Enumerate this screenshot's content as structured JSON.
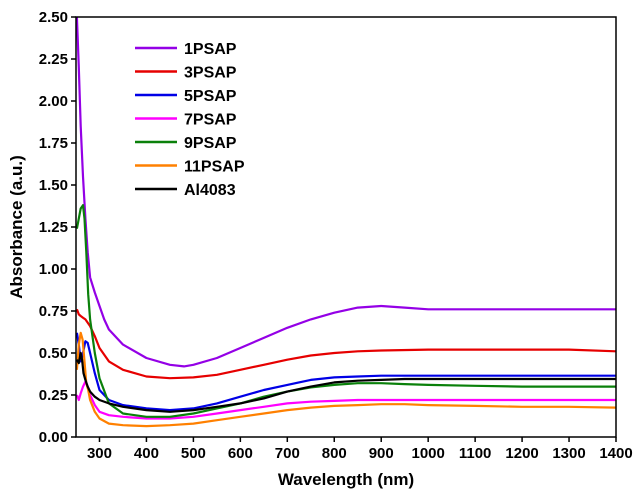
{
  "chart_data": {
    "type": "line",
    "xlabel": "Wavelength (nm)",
    "ylabel": "Absorbance (a.u.)",
    "xlim": [
      250,
      1400
    ],
    "ylim": [
      0,
      2.5
    ],
    "xticks": [
      300,
      400,
      500,
      600,
      700,
      800,
      900,
      1000,
      1100,
      1200,
      1300,
      1400
    ],
    "yticks": [
      "0.00",
      "0.25",
      "0.50",
      "0.75",
      "1.00",
      "1.25",
      "1.50",
      "1.75",
      "2.00",
      "2.25",
      "2.50"
    ],
    "legend_position": "top-left",
    "grid": false,
    "series": [
      {
        "name": "1PSAP",
        "color": "#9400e6",
        "x": [
          252,
          256,
          260,
          265,
          270,
          275,
          280,
          290,
          300,
          310,
          320,
          350,
          400,
          450,
          480,
          500,
          550,
          600,
          650,
          700,
          750,
          800,
          850,
          900,
          950,
          1000,
          1100,
          1200,
          1300,
          1400
        ],
        "y": [
          2.5,
          2.2,
          1.85,
          1.55,
          1.3,
          1.1,
          0.95,
          0.86,
          0.78,
          0.7,
          0.64,
          0.55,
          0.47,
          0.43,
          0.42,
          0.43,
          0.47,
          0.53,
          0.59,
          0.65,
          0.7,
          0.74,
          0.77,
          0.78,
          0.77,
          0.76,
          0.76,
          0.76,
          0.76,
          0.76
        ]
      },
      {
        "name": "3PSAP",
        "color": "#e60000",
        "x": [
          252,
          256,
          260,
          265,
          270,
          280,
          290,
          300,
          320,
          350,
          400,
          450,
          500,
          550,
          600,
          650,
          700,
          750,
          800,
          850,
          900,
          1000,
          1100,
          1200,
          1300,
          1400
        ],
        "y": [
          0.76,
          0.73,
          0.72,
          0.71,
          0.7,
          0.66,
          0.6,
          0.53,
          0.45,
          0.4,
          0.36,
          0.35,
          0.355,
          0.37,
          0.4,
          0.43,
          0.46,
          0.485,
          0.5,
          0.51,
          0.515,
          0.52,
          0.52,
          0.52,
          0.52,
          0.51
        ]
      },
      {
        "name": "5PSAP",
        "color": "#0000e6",
        "x": [
          252,
          256,
          260,
          265,
          270,
          275,
          280,
          290,
          300,
          320,
          350,
          400,
          450,
          500,
          550,
          600,
          650,
          700,
          750,
          800,
          850,
          900,
          1000,
          1100,
          1200,
          1300,
          1400
        ],
        "y": [
          0.62,
          0.55,
          0.45,
          0.5,
          0.57,
          0.56,
          0.5,
          0.38,
          0.28,
          0.22,
          0.19,
          0.17,
          0.16,
          0.17,
          0.2,
          0.24,
          0.28,
          0.31,
          0.34,
          0.355,
          0.36,
          0.365,
          0.365,
          0.365,
          0.365,
          0.365,
          0.365
        ]
      },
      {
        "name": "7PSAP",
        "color": "#ff00ff",
        "x": [
          252,
          256,
          260,
          265,
          270,
          275,
          280,
          290,
          300,
          320,
          350,
          400,
          450,
          500,
          550,
          600,
          650,
          700,
          750,
          800,
          850,
          900,
          1000,
          1100,
          1200,
          1300,
          1400
        ],
        "y": [
          0.25,
          0.22,
          0.26,
          0.3,
          0.33,
          0.3,
          0.25,
          0.19,
          0.15,
          0.13,
          0.12,
          0.11,
          0.11,
          0.12,
          0.14,
          0.16,
          0.18,
          0.2,
          0.21,
          0.215,
          0.22,
          0.22,
          0.22,
          0.22,
          0.22,
          0.22,
          0.22
        ]
      },
      {
        "name": "9PSAP",
        "color": "#0a800a",
        "x": [
          252,
          256,
          260,
          265,
          268,
          272,
          276,
          280,
          290,
          300,
          320,
          350,
          400,
          450,
          500,
          550,
          600,
          650,
          700,
          750,
          800,
          850,
          900,
          950,
          1000,
          1100,
          1200,
          1300,
          1400
        ],
        "y": [
          1.24,
          1.3,
          1.36,
          1.38,
          1.3,
          1.1,
          0.85,
          0.7,
          0.5,
          0.35,
          0.2,
          0.14,
          0.12,
          0.12,
          0.14,
          0.17,
          0.2,
          0.24,
          0.27,
          0.295,
          0.31,
          0.32,
          0.32,
          0.315,
          0.31,
          0.305,
          0.3,
          0.3,
          0.3
        ]
      },
      {
        "name": "11PSAP",
        "color": "#ff8000",
        "x": [
          252,
          256,
          260,
          264,
          268,
          272,
          276,
          280,
          290,
          300,
          320,
          350,
          400,
          450,
          500,
          550,
          600,
          650,
          700,
          750,
          800,
          850,
          900,
          950,
          1000,
          1100,
          1200,
          1300,
          1400
        ],
        "y": [
          0.4,
          0.55,
          0.62,
          0.58,
          0.45,
          0.32,
          0.28,
          0.22,
          0.15,
          0.11,
          0.08,
          0.07,
          0.065,
          0.07,
          0.08,
          0.1,
          0.12,
          0.14,
          0.16,
          0.175,
          0.185,
          0.19,
          0.195,
          0.195,
          0.19,
          0.185,
          0.18,
          0.18,
          0.175
        ]
      },
      {
        "name": "Al4083",
        "color": "#000000",
        "x": [
          252,
          256,
          260,
          263,
          266,
          270,
          275,
          280,
          290,
          300,
          320,
          350,
          400,
          450,
          500,
          550,
          600,
          650,
          700,
          750,
          800,
          850,
          900,
          950,
          1000,
          1100,
          1200,
          1300,
          1400
        ],
        "y": [
          0.46,
          0.44,
          0.5,
          0.46,
          0.38,
          0.34,
          0.3,
          0.27,
          0.24,
          0.22,
          0.2,
          0.18,
          0.16,
          0.15,
          0.16,
          0.18,
          0.2,
          0.23,
          0.27,
          0.3,
          0.325,
          0.335,
          0.34,
          0.345,
          0.345,
          0.345,
          0.345,
          0.345,
          0.345
        ]
      }
    ]
  }
}
